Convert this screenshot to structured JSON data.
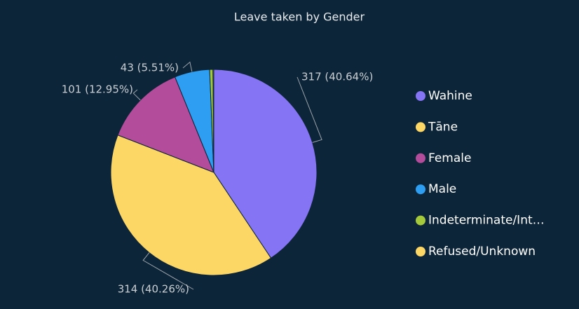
{
  "chart_data": {
    "type": "pie",
    "title": "Leave taken by Gender",
    "categories": [
      "Wahine",
      "Tāne",
      "Female",
      "Male",
      "Indeterminate/Int…",
      "Refused/Unknown"
    ],
    "values": [
      317,
      314,
      101,
      43,
      4,
      1
    ],
    "value_labels": [
      "317 (40.64%)",
      "314 (40.26%)",
      "101 (12.95%)",
      "43 (5.51%)",
      null,
      null
    ],
    "colors": [
      "#8574f3",
      "#fdd766",
      "#b24c9b",
      "#2d9ef2",
      "#a4c93a",
      "#fdd766"
    ],
    "legend": "right"
  }
}
